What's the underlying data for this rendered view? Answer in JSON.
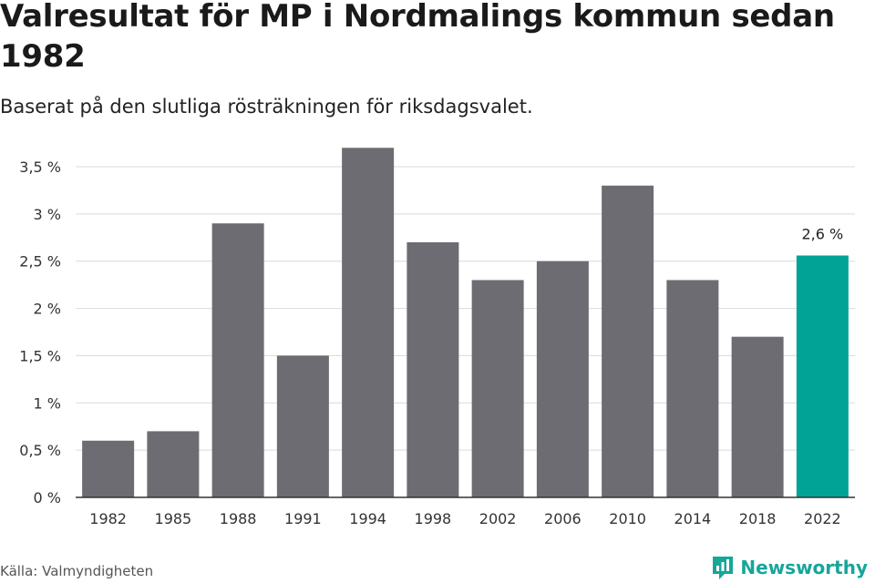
{
  "header": {
    "title": "Valresultat för MP i Nordmalings kommun sedan 1982",
    "subtitle": "Baserat på den slutliga rösträkningen för riksdagsvalet."
  },
  "footer": {
    "source": "Källa: Valmyndigheten",
    "brand": "Newsworthy"
  },
  "colors": {
    "bar": "#6d6c72",
    "highlight": "#00a396",
    "grid": "#d9d9d9",
    "axis": "#333333",
    "brand": "#16a69a"
  },
  "chart_data": {
    "type": "bar",
    "categories": [
      "1982",
      "1985",
      "1988",
      "1991",
      "1994",
      "1998",
      "2002",
      "2006",
      "2010",
      "2014",
      "2018",
      "2022"
    ],
    "values": [
      0.6,
      0.7,
      2.9,
      1.5,
      3.7,
      2.7,
      2.3,
      2.5,
      3.3,
      2.3,
      1.7,
      2.56
    ],
    "ylim": [
      0,
      3.5
    ],
    "yticks": [
      0,
      0.5,
      1,
      1.5,
      2,
      2.5,
      3,
      3.5
    ],
    "ytick_labels": [
      "0 %",
      "0,5 %",
      "1 %",
      "1,5 %",
      "2 %",
      "2,5 %",
      "3 %",
      "3,5 %"
    ],
    "highlight_index": 11,
    "data_labels": [
      {
        "index": 11,
        "text": "2,6 %"
      }
    ],
    "grid": true,
    "xlabel": "",
    "ylabel": ""
  }
}
